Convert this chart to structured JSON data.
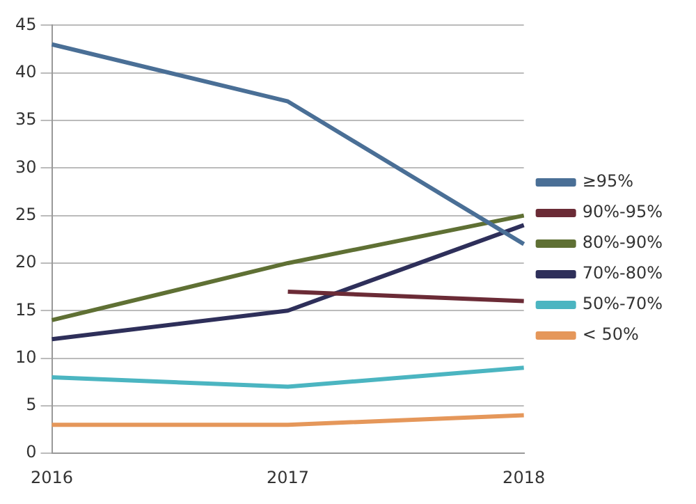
{
  "chart_data": {
    "type": "line",
    "categories": [
      "2016",
      "2017",
      "2018"
    ],
    "series": [
      {
        "name": "≥95%",
        "color": "#4a6f96",
        "values": [
          43,
          37,
          22
        ]
      },
      {
        "name": "90%-95%",
        "color": "#6b2b36",
        "values": [
          null,
          17,
          16
        ]
      },
      {
        "name": "80%-90%",
        "color": "#5f7034",
        "values": [
          14,
          20,
          25
        ]
      },
      {
        "name": "70%-80%",
        "color": "#2e2f5a",
        "values": [
          12,
          15,
          24
        ]
      },
      {
        "name": "50%-70%",
        "color": "#4bb5c1",
        "values": [
          8,
          7,
          9
        ]
      },
      {
        "name": "< 50%",
        "color": "#e5975a",
        "values": [
          3,
          3,
          4
        ]
      }
    ],
    "ylim": [
      0,
      45
    ],
    "yticks": [
      0,
      5,
      10,
      15,
      20,
      25,
      30,
      35,
      40,
      45
    ],
    "grid": "y",
    "legend": "right",
    "marker": "none",
    "line_style": "solid"
  }
}
